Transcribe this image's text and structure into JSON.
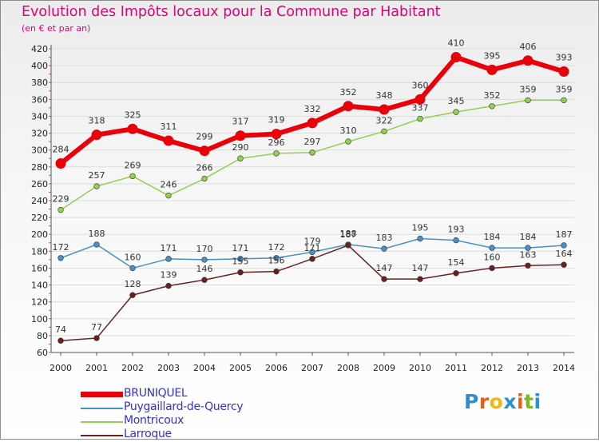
{
  "title": "Evolution des Impôts locaux pour la Commune par Habitant",
  "subtitle": "(en € et par an)",
  "logo": {
    "text": "Proxiti",
    "colors": [
      "#2a8fd6",
      "#e85d1a",
      "#f2b51a",
      "#2a8fd6",
      "#e85d1a",
      "#7ab828",
      "#2a8fd6"
    ]
  },
  "chart_data": {
    "type": "line",
    "title": "Evolution des Impôts locaux pour la Commune par Habitant",
    "subtitle": "(en € et par an)",
    "xlabel": "",
    "ylabel": "",
    "x": [
      "2000",
      "2001",
      "2002",
      "2003",
      "2004",
      "2005",
      "2006",
      "2007",
      "2008",
      "2009",
      "2010",
      "2011",
      "2012",
      "2013",
      "2014"
    ],
    "ylim": [
      60,
      420
    ],
    "yticks": [
      60,
      80,
      100,
      120,
      140,
      160,
      180,
      200,
      220,
      240,
      260,
      280,
      300,
      320,
      340,
      360,
      380,
      400,
      420
    ],
    "grid": "horizontal",
    "legend_position": "bottom-left",
    "series": [
      {
        "name": "BRUNIQUEL",
        "color": "#e8000b",
        "width": "heavy",
        "values": [
          284,
          318,
          325,
          311,
          299,
          317,
          319,
          332,
          352,
          348,
          360,
          410,
          395,
          406,
          393
        ]
      },
      {
        "name": "Puygaillard-de-Quercy",
        "color": "#4a90c8",
        "width": "thin",
        "values": [
          172,
          188,
          160,
          171,
          170,
          171,
          172,
          179,
          188,
          183,
          195,
          193,
          184,
          184,
          187
        ]
      },
      {
        "name": "Montricoux",
        "color": "#92d050",
        "width": "thin",
        "values": [
          229,
          257,
          269,
          246,
          266,
          290,
          296,
          297,
          310,
          322,
          337,
          345,
          352,
          359,
          359
        ]
      },
      {
        "name": "Larroque",
        "color": "#6b2020",
        "width": "thin",
        "values": [
          74,
          77,
          128,
          139,
          146,
          155,
          156,
          171,
          187,
          147,
          147,
          154,
          160,
          163,
          164
        ]
      }
    ]
  }
}
